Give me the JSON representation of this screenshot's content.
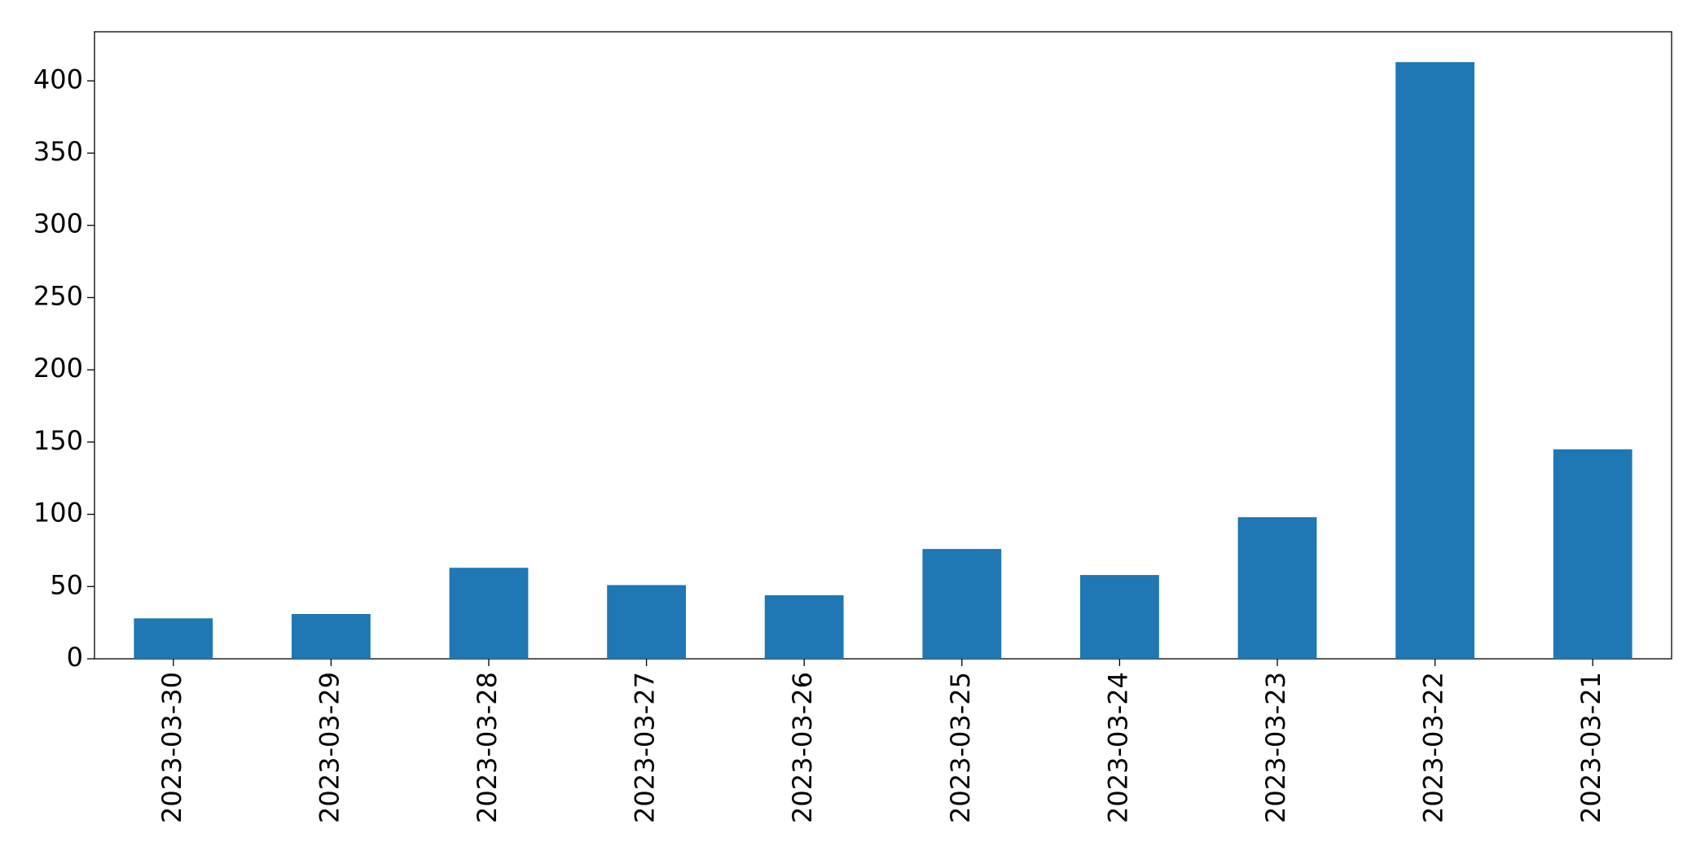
{
  "chart_data": {
    "type": "bar",
    "categories": [
      "2023-03-30",
      "2023-03-29",
      "2023-03-28",
      "2023-03-27",
      "2023-03-26",
      "2023-03-25",
      "2023-03-24",
      "2023-03-23",
      "2023-03-22",
      "2023-03-21"
    ],
    "values": [
      28,
      31,
      63,
      51,
      44,
      76,
      58,
      98,
      413,
      145
    ],
    "color": "#1f77b4",
    "ylim": [
      0,
      434
    ],
    "yticks": [
      0,
      50,
      100,
      150,
      200,
      250,
      300,
      350,
      400
    ],
    "grid": false
  }
}
